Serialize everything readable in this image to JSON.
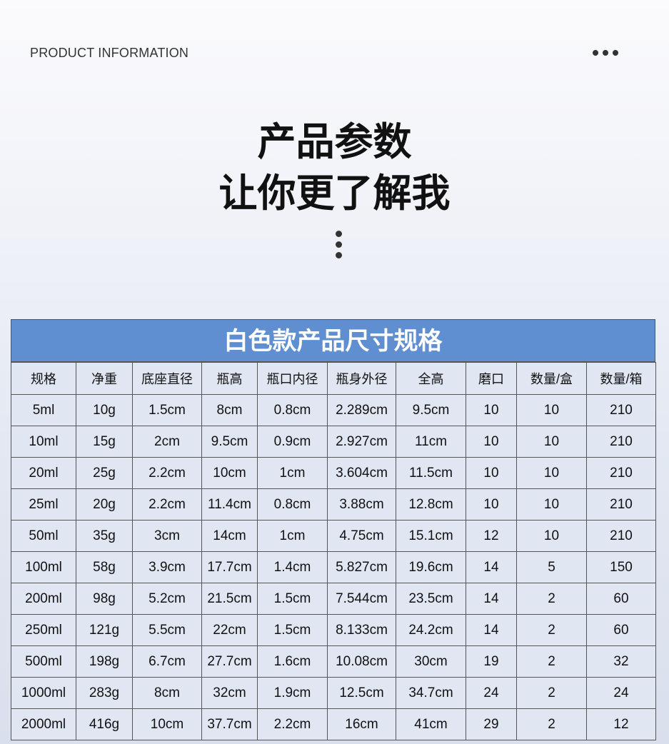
{
  "header": {
    "eyebrow": "PRODUCT INFORMATION",
    "more_icon": "ellipsis-horizontal-icon"
  },
  "hero": {
    "line1": "产品参数",
    "line2": "让你更了解我",
    "divider_icon": "ellipsis-vertical-icon"
  },
  "colors": {
    "caption_bg": "#5f8fd0",
    "cell_bg": "#e0e6f2"
  },
  "table": {
    "caption": "白色款产品尺寸规格",
    "columns": [
      "规格",
      "净重",
      "底座直径",
      "瓶高",
      "瓶口内径",
      "瓶身外径",
      "全高",
      "磨口",
      "数量/盒",
      "数量/箱"
    ],
    "rows": [
      [
        "5ml",
        "10g",
        "1.5cm",
        "8cm",
        "0.8cm",
        "2.289cm",
        "9.5cm",
        "10",
        "10",
        "210"
      ],
      [
        "10ml",
        "15g",
        "2cm",
        "9.5cm",
        "0.9cm",
        "2.927cm",
        "11cm",
        "10",
        "10",
        "210"
      ],
      [
        "20ml",
        "25g",
        "2.2cm",
        "10cm",
        "1cm",
        "3.604cm",
        "11.5cm",
        "10",
        "10",
        "210"
      ],
      [
        "25ml",
        "20g",
        "2.2cm",
        "11.4cm",
        "0.8cm",
        "3.88cm",
        "12.8cm",
        "10",
        "10",
        "210"
      ],
      [
        "50ml",
        "35g",
        "3cm",
        "14cm",
        "1cm",
        "4.75cm",
        "15.1cm",
        "12",
        "10",
        "210"
      ],
      [
        "100ml",
        "58g",
        "3.9cm",
        "17.7cm",
        "1.4cm",
        "5.827cm",
        "19.6cm",
        "14",
        "5",
        "150"
      ],
      [
        "200ml",
        "98g",
        "5.2cm",
        "21.5cm",
        "1.5cm",
        "7.544cm",
        "23.5cm",
        "14",
        "2",
        "60"
      ],
      [
        "250ml",
        "121g",
        "5.5cm",
        "22cm",
        "1.5cm",
        "8.133cm",
        "24.2cm",
        "14",
        "2",
        "60"
      ],
      [
        "500ml",
        "198g",
        "6.7cm",
        "27.7cm",
        "1.6cm",
        "10.08cm",
        "30cm",
        "19",
        "2",
        "32"
      ],
      [
        "1000ml",
        "283g",
        "8cm",
        "32cm",
        "1.9cm",
        "12.5cm",
        "34.7cm",
        "24",
        "2",
        "24"
      ],
      [
        "2000ml",
        "416g",
        "10cm",
        "37.7cm",
        "2.2cm",
        "16cm",
        "41cm",
        "29",
        "2",
        "12"
      ]
    ]
  }
}
